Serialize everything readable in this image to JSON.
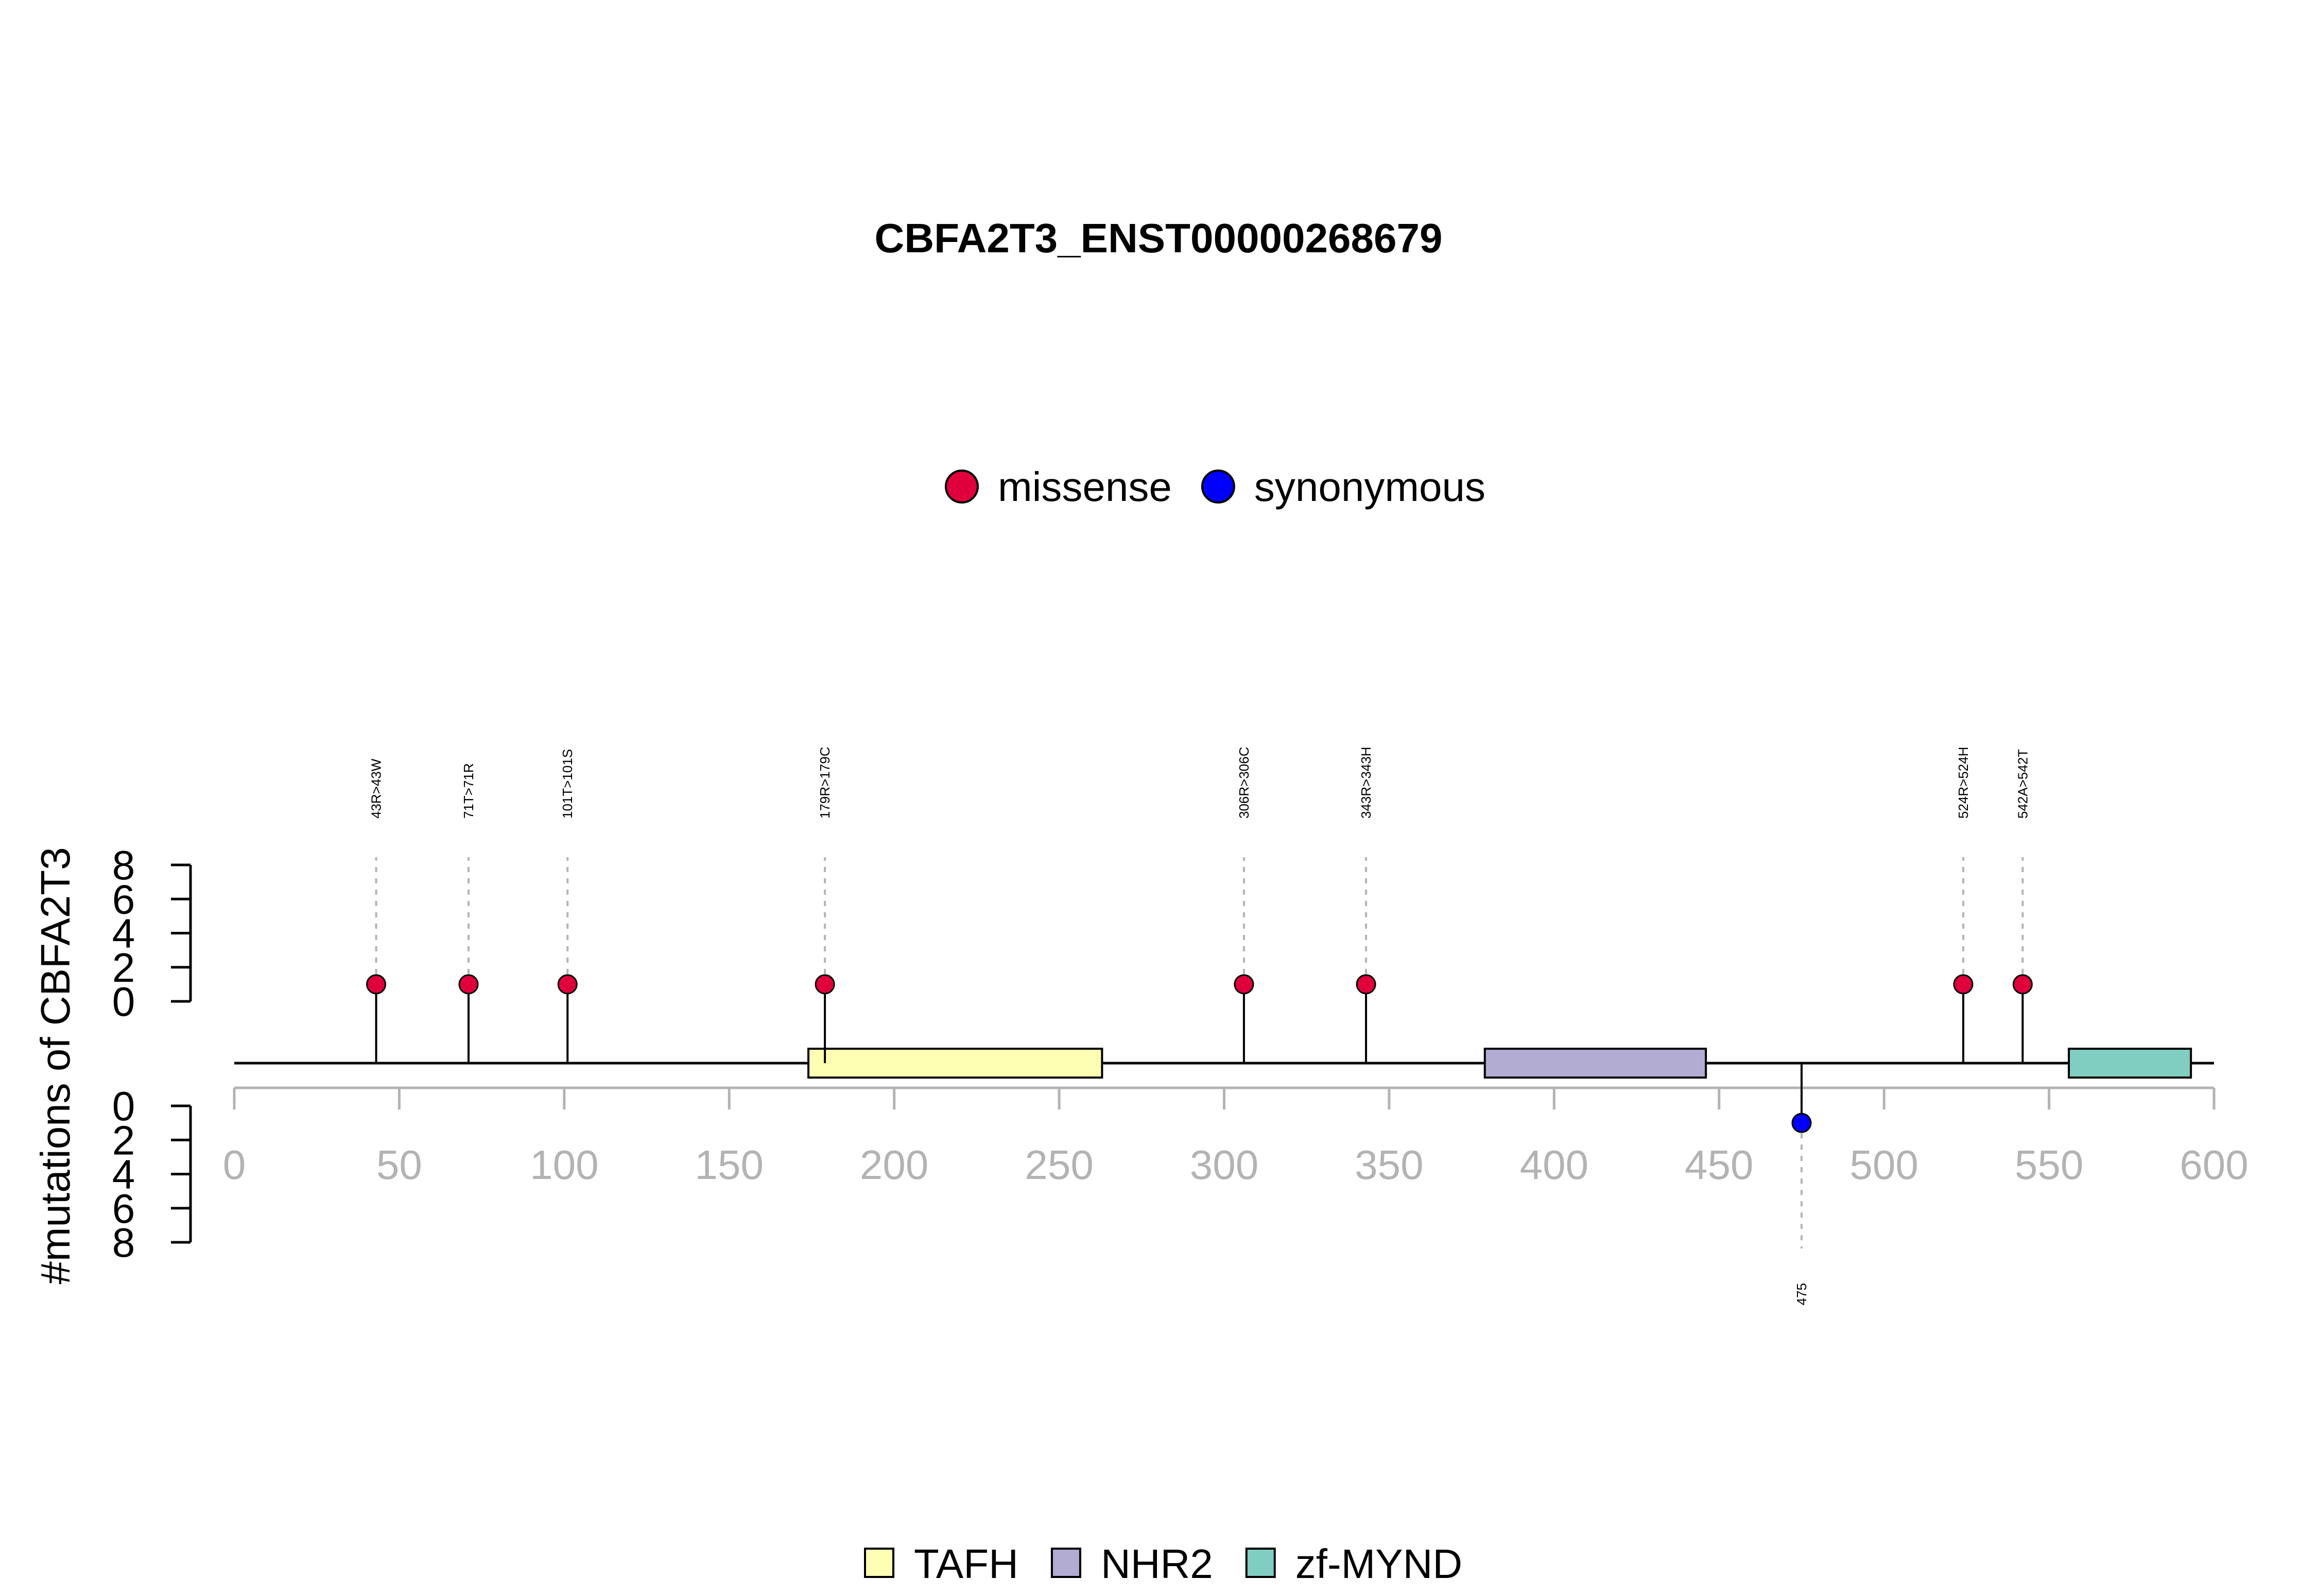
{
  "chart_data": {
    "type": "lollipop",
    "title": "CBFA2T3_ENST00000268679",
    "ylabel": "#mutations of CBFA2T3",
    "xlim": [
      0,
      600
    ],
    "x_ticks": [
      0,
      50,
      100,
      150,
      200,
      250,
      300,
      350,
      400,
      450,
      500,
      550,
      600
    ],
    "y_ticks": [
      0,
      2,
      4,
      6,
      8
    ],
    "ylim_top": [
      0,
      8
    ],
    "ylim_bottom": [
      0,
      8
    ],
    "mutation_legend": [
      {
        "name": "missense",
        "color": "#E0003C"
      },
      {
        "name": "synonymous",
        "color": "#0000FF"
      }
    ],
    "mutations": [
      {
        "position": 43,
        "label": "43R>43W",
        "type": "missense",
        "count": 1,
        "side": "top"
      },
      {
        "position": 71,
        "label": "71T>71R",
        "type": "missense",
        "count": 1,
        "side": "top"
      },
      {
        "position": 101,
        "label": "101T>101S",
        "type": "missense",
        "count": 1,
        "side": "top"
      },
      {
        "position": 179,
        "label": "179R>179C",
        "type": "missense",
        "count": 1,
        "side": "top"
      },
      {
        "position": 306,
        "label": "306R>306C",
        "type": "missense",
        "count": 1,
        "side": "top"
      },
      {
        "position": 343,
        "label": "343R>343H",
        "type": "missense",
        "count": 1,
        "side": "top"
      },
      {
        "position": 524,
        "label": "524R>524H",
        "type": "missense",
        "count": 1,
        "side": "top"
      },
      {
        "position": 542,
        "label": "542A>542T",
        "type": "missense",
        "count": 1,
        "side": "top"
      },
      {
        "position": 475,
        "label": "475",
        "type": "synonymous",
        "count": 1,
        "side": "bottom"
      }
    ],
    "domains": [
      {
        "name": "TAFH",
        "start": 174,
        "end": 263,
        "color": "#FFFFB3"
      },
      {
        "name": "NHR2",
        "start": 379,
        "end": 446,
        "color": "#B2ABD2"
      },
      {
        "name": "zf-MYND",
        "start": 556,
        "end": 593,
        "color": "#80CDC1"
      }
    ]
  }
}
